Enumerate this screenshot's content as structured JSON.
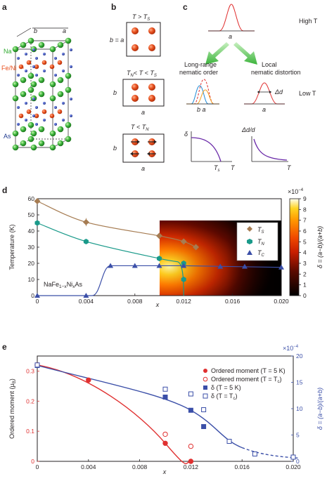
{
  "panels": {
    "a": "a",
    "b": "b",
    "c": "c",
    "d": "d",
    "e": "e"
  },
  "panel_a": {
    "axis_b": "b",
    "axis_a": "a",
    "na": "Na",
    "fe_ni": "Fe/Ni",
    "as": "As",
    "colors": {
      "na": "#2eaa2e",
      "fe": "#e8501e",
      "as": "#1f3a8f"
    }
  },
  "panel_b": {
    "box1_title": "T > T",
    "box1_title_sub": "S",
    "box1_left": "b = a",
    "box2_title_pre": "T",
    "box2_title_pre_sub": "N",
    "box2_title_post": "< T < T",
    "box2_title_post_sub": "S",
    "box2_left": "b",
    "box2_bottom": "a",
    "box3_title": "T < T",
    "box3_title_sub": "N",
    "box3_left": "b",
    "box3_bottom": "a"
  },
  "panel_c": {
    "high_t": "High T",
    "low_t": "Low T",
    "top_axis": "a",
    "left_title_1": "Long-range",
    "left_title_2": "nematic order",
    "right_title_1": "Local",
    "right_title_2": "nematic distortion",
    "left_axis": "b a",
    "right_axis": "a",
    "delta_d": "Δd",
    "inset1_y": "δ",
    "inset1_x": "T",
    "inset1_ts": "T",
    "inset1_ts_sub": "s",
    "inset2_y": "Δd/d",
    "inset2_x": "T"
  },
  "panel_d": {
    "ylabel": "Temperature (K)",
    "xlabel": "x",
    "compound_pre": "NaFe",
    "compound_sub1": "1−x",
    "compound_mid": "Ni",
    "compound_sub2": "x",
    "compound_post": "As",
    "cbar_label": "δ = (a−b)/(a+b)",
    "cbar_exp": "×10",
    "cbar_exp_sup": "−4",
    "legend": [
      {
        "name": "T",
        "sub": "S"
      },
      {
        "name": "T",
        "sub": "N"
      },
      {
        "name": "T",
        "sub": "C"
      }
    ]
  },
  "panel_e": {
    "ylabel_left": "Ordered moment (μ",
    "ylabel_left_sub": "B",
    "ylabel_left_end": ")",
    "xlabel": "x",
    "ylabel_right": "δ = (a−b)/(a+b)",
    "right_exp": "×10",
    "right_exp_sup": "−4",
    "legend": [
      {
        "text": "Ordered moment (T = 5 K)"
      },
      {
        "text": "Ordered moment (T = T",
        "sub": "c",
        "end": ")"
      },
      {
        "text": "δ (T = 5 K)"
      },
      {
        "text": "δ (T = T",
        "sub": "c",
        "end": ")"
      }
    ]
  },
  "chart_data": [
    {
      "type": "scatter",
      "xlabel": "x",
      "ylabel": "Temperature (K)",
      "xlim": [
        0,
        0.02
      ],
      "ylim": [
        0,
        60
      ],
      "xticks": [
        0,
        0.004,
        0.008,
        0.012,
        0.016,
        0.02
      ],
      "xtick_labels": [
        "0",
        "0.004",
        "0.008",
        "0.012",
        "0.016",
        "0.020"
      ],
      "yticks": [
        0,
        10,
        20,
        30,
        40,
        50,
        60
      ],
      "colorbar": {
        "label": "δ = (a−b)/(a+b)",
        "exponent": "×10−4",
        "range": [
          0,
          9
        ],
        "ticks": [
          0,
          1,
          2,
          3,
          4,
          5,
          6,
          7,
          8,
          9
        ]
      },
      "series": [
        {
          "name": "TS",
          "color": "#a67c52",
          "marker": "diamond",
          "x": [
            0,
            0.004,
            0.01,
            0.012,
            0.013
          ],
          "y": [
            58.5,
            45.5,
            37,
            33.5,
            30
          ]
        },
        {
          "name": "TN",
          "color": "#1a9a8a",
          "marker": "hexagon",
          "x": [
            0,
            0.004,
            0.01,
            0.012,
            0.012
          ],
          "y": [
            45,
            33.5,
            23,
            20,
            10
          ]
        },
        {
          "name": "TC",
          "color": "#3b4fa8",
          "marker": "triangle",
          "x": [
            0,
            0.004,
            0.006,
            0.008,
            0.01,
            0.012,
            0.015,
            0.017,
            0.02
          ],
          "y": [
            0,
            0,
            18.5,
            18.5,
            18.5,
            18.5,
            18,
            18,
            17.5
          ]
        }
      ]
    },
    {
      "type": "scatter",
      "xlabel": "x",
      "ylabel": "Ordered moment (μB)",
      "y2label": "δ = (a−b)/(a+b)",
      "xlim": [
        0,
        0.02
      ],
      "ylim": [
        0,
        0.35
      ],
      "y2lim": [
        0,
        20
      ],
      "xticks": [
        0,
        0.004,
        0.008,
        0.012,
        0.016,
        0.02
      ],
      "xtick_labels": [
        "0",
        "0.004",
        "0.008",
        "0.012",
        "0.016",
        "0.020"
      ],
      "yticks": [
        0,
        0.1,
        0.2,
        0.3
      ],
      "ytick_labels": [
        "0",
        "0.1",
        "0.2",
        "0.3"
      ],
      "y2ticks": [
        0,
        5,
        10,
        15,
        20
      ],
      "series": [
        {
          "name": "Ordered moment (T = 5 K)",
          "color": "#e03030",
          "marker": "circle",
          "filled": true,
          "axis": "left",
          "x": [
            0,
            0.004,
            0.01,
            0.012
          ],
          "y": [
            0.32,
            0.27,
            0.06,
            0
          ]
        },
        {
          "name": "Ordered moment (T = Tc)",
          "color": "#e03030",
          "marker": "circle",
          "filled": false,
          "axis": "left",
          "x": [
            0,
            0.01,
            0.012
          ],
          "y": [
            0.32,
            0.09,
            0.05
          ]
        },
        {
          "name": "δ (T = 5 K)",
          "color": "#3b4fa8",
          "marker": "square",
          "filled": true,
          "axis": "right",
          "x": [
            0,
            0.01,
            0.012,
            0.013,
            0.015
          ],
          "y": [
            18.2,
            12.2,
            9.7,
            6.6,
            3.8
          ]
        },
        {
          "name": "δ (T = Tc)",
          "color": "#3b4fa8",
          "marker": "square",
          "filled": false,
          "axis": "right",
          "x": [
            0,
            0.01,
            0.012,
            0.013,
            0.015,
            0.017,
            0.02
          ],
          "y": [
            18.3,
            13.7,
            12.8,
            9.8,
            3.8,
            1.4,
            0.8
          ]
        }
      ]
    }
  ]
}
